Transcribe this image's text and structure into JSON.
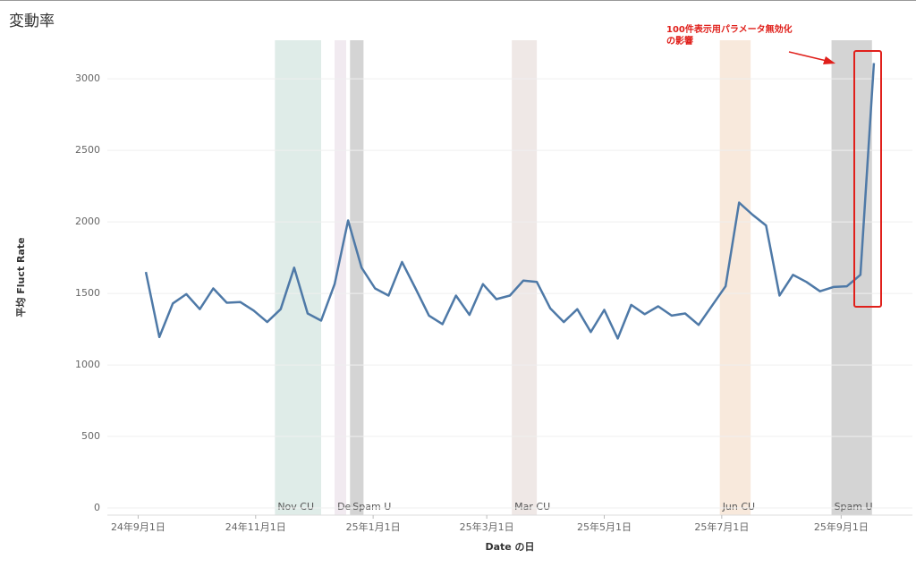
{
  "chart_data": {
    "type": "line",
    "title": "変動率",
    "x_label": "Date の日",
    "y_label": "平均 Fluct Rate",
    "x": [
      "2024-09-05",
      "2024-09-12",
      "2024-09-19",
      "2024-09-26",
      "2024-10-03",
      "2024-10-10",
      "2024-10-17",
      "2024-10-24",
      "2024-10-31",
      "2024-11-07",
      "2024-11-14",
      "2024-11-21",
      "2024-11-28",
      "2024-12-05",
      "2024-12-12",
      "2024-12-19",
      "2024-12-26",
      "2025-01-02",
      "2025-01-09",
      "2025-01-16",
      "2025-01-23",
      "2025-01-30",
      "2025-02-06",
      "2025-02-13",
      "2025-02-20",
      "2025-02-27",
      "2025-03-06",
      "2025-03-13",
      "2025-03-20",
      "2025-03-27",
      "2025-04-03",
      "2025-04-10",
      "2025-04-17",
      "2025-04-24",
      "2025-05-01",
      "2025-05-08",
      "2025-05-15",
      "2025-05-22",
      "2025-05-29",
      "2025-06-05",
      "2025-06-12",
      "2025-06-19",
      "2025-06-26",
      "2025-07-03",
      "2025-07-10",
      "2025-07-17",
      "2025-07-24",
      "2025-07-31",
      "2025-08-07",
      "2025-08-14",
      "2025-08-21",
      "2025-08-28",
      "2025-09-04",
      "2025-09-11",
      "2025-09-18"
    ],
    "series": [
      {
        "name": "平均 Fluct Rate",
        "color": "#4e79a7",
        "values": [
          1650,
          1195,
          1430,
          1495,
          1390,
          1535,
          1435,
          1440,
          1380,
          1300,
          1390,
          1680,
          1360,
          1310,
          1565,
          2010,
          1680,
          1535,
          1485,
          1720,
          1535,
          1345,
          1285,
          1485,
          1350,
          1565,
          1460,
          1485,
          1590,
          1580,
          1395,
          1300,
          1390,
          1230,
          1385,
          1185,
          1420,
          1355,
          1410,
          1345,
          1360,
          1280,
          1415,
          1550,
          2135,
          2050,
          1975,
          1485,
          1630,
          1580,
          1515,
          1545,
          1550,
          1630,
          3110
        ]
      }
    ],
    "xlim": [
      "2024-08-16",
      "2025-10-08"
    ],
    "xticks": [
      {
        "value": "2024-09-01",
        "label": "24年9月1日"
      },
      {
        "value": "2024-11-01",
        "label": "24年11月1日"
      },
      {
        "value": "2025-01-01",
        "label": "25年1月1日"
      },
      {
        "value": "2025-03-01",
        "label": "25年3月1日"
      },
      {
        "value": "2025-05-01",
        "label": "25年5月1日"
      },
      {
        "value": "2025-07-01",
        "label": "25年7月1日"
      },
      {
        "value": "2025-09-01",
        "label": "25年9月1日"
      }
    ],
    "ylim": [
      -50,
      3270
    ],
    "yticks": [
      0,
      500,
      1000,
      1500,
      2000,
      2500,
      3000
    ],
    "grid": true,
    "bands": [
      {
        "label": "Nov CU",
        "start": "2024-11-11",
        "end": "2024-12-05",
        "color": "#dfece8"
      },
      {
        "label": "Dec",
        "start": "2024-12-12",
        "end": "2024-12-18",
        "color": "#f1eaf0"
      },
      {
        "label": "Spam U",
        "start": "2024-12-20",
        "end": "2024-12-27",
        "color": "#d4d4d4"
      },
      {
        "label": "Mar CU",
        "start": "2025-03-14",
        "end": "2025-03-27",
        "color": "#efe8e6"
      },
      {
        "label": "Jun CU",
        "start": "2025-06-30",
        "end": "2025-07-16",
        "color": "#f8e9dc"
      },
      {
        "label": "Spam U",
        "start": "2025-08-27",
        "end": "2025-09-17",
        "color": "#d4d4d4"
      }
    ],
    "annotation": {
      "lines": [
        "100件表示用パラメータ無効化",
        "の影響"
      ],
      "color": "#e0201b"
    }
  }
}
